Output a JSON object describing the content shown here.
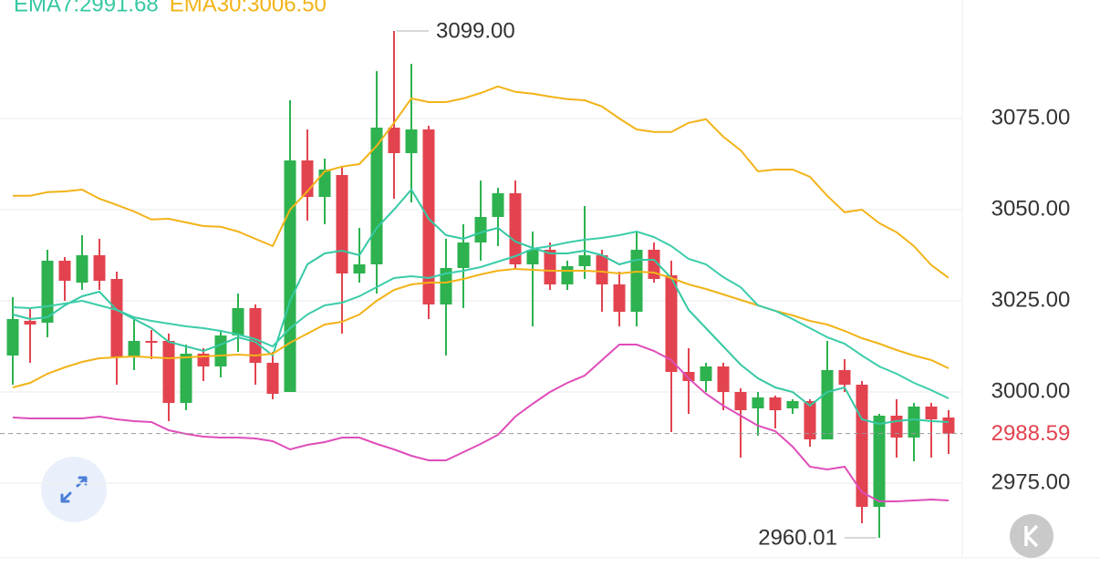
{
  "chart_data": {
    "type": "candlestick",
    "up_color": "#2db24f",
    "down_color": "#e2434f",
    "open": [
      3010,
      3019.5,
      3019,
      3036,
      3030,
      3037.5,
      3031,
      3009.5,
      3014,
      3014,
      2997,
      3010.5,
      3007,
      3015.5,
      3023,
      3008,
      3000,
      3063.5,
      3053.5,
      3059.5,
      3032.5,
      3035,
      3072.5,
      3065.5,
      3072,
      3024,
      3034,
      3041,
      3048,
      3054.5,
      3035,
      3039,
      3029.5,
      3034.5,
      3037.5,
      3029.5,
      3022,
      3039,
      3032,
      3005.5,
      3003,
      3007,
      3000,
      2995.5,
      2998.5,
      2995.5,
      2997.5,
      2987,
      3006,
      3002,
      2968.5,
      2993.5,
      2987.5,
      2996,
      2993
    ],
    "high": [
      3026,
      3023,
      3039,
      3037,
      3043,
      3042,
      3033,
      3020,
      3017,
      3016,
      3013,
      3012,
      3017,
      3027,
      3024,
      3011,
      3080,
      3072,
      3064,
      3062,
      3045,
      3088,
      3099,
      3090,
      3073,
      3042,
      3046,
      3058,
      3056,
      3058,
      3044,
      3041,
      3036,
      3051,
      3039,
      3033,
      3044,
      3041,
      3036,
      3012,
      3008,
      3008,
      3001,
      3000,
      2999,
      2998,
      2998,
      3014,
      3009,
      3003,
      2994,
      2998,
      2997,
      2997,
      2995
    ],
    "low": [
      3002,
      3008,
      3015,
      3025,
      3028,
      3028,
      3002,
      3006,
      3009,
      2992,
      2995,
      3003,
      3004,
      3011,
      3002,
      2998,
      3000,
      3047,
      3046,
      3016,
      3030,
      3027,
      3053,
      3052,
      3020,
      3010,
      3023,
      3036,
      3040,
      3034,
      3018,
      3028,
      3028,
      3031,
      3022,
      3018,
      3018,
      3030,
      2989,
      2994,
      3000,
      2995,
      2982,
      2988,
      2990,
      2994,
      2985,
      2987,
      3000,
      2964,
      2960.01,
      2982,
      2981,
      2982,
      2983
    ],
    "close": [
      3020,
      3018.5,
      3036,
      3030.5,
      3037.5,
      3030.5,
      3009.5,
      3014,
      3013.5,
      2997,
      3010.5,
      3007,
      3015.5,
      3023,
      3008,
      2999.5,
      3063.5,
      3053.5,
      3061,
      3032.5,
      3035,
      3072.5,
      3065.5,
      3072,
      3024,
      3034,
      3041,
      3048,
      3054.5,
      3035,
      3039,
      3029.5,
      3034.5,
      3037.5,
      3029.5,
      3022,
      3039,
      3031,
      3005.5,
      3003,
      3007,
      3000,
      2995,
      2998.5,
      2995,
      2997.5,
      2987,
      3006,
      3002,
      2968.5,
      2993.5,
      2987.5,
      2996,
      2992.5,
      2988.59
    ],
    "series": [
      {
        "name": "EMA7:2991.68",
        "color": "#35c8a3",
        "values": [
          3021.25,
          3020,
          3020.5,
          3023.75,
          3026.25,
          3027.5,
          3022.5,
          3020,
          3017.5,
          3013.75,
          3012.5,
          3011.25,
          3013,
          3015,
          3013.75,
          3010,
          3025,
          3035,
          3038,
          3038.75,
          3037.5,
          3045,
          3050,
          3055.5,
          3047.5,
          3043,
          3042,
          3043.75,
          3045,
          3041.25,
          3039.5,
          3038,
          3038,
          3038.75,
          3037.5,
          3035,
          3036.25,
          3036.25,
          3031.25,
          3022.5,
          3017.5,
          3012.5,
          3007.5,
          3003.75,
          3001.25,
          3000,
          2996.25,
          3000,
          3001.25,
          2992.5,
          2991.25,
          2992,
          2992.5,
          2992,
          2991.75
        ]
      },
      {
        "name": "EMA30:3006.50",
        "color": "#f2b318",
        "values": [
          3001.25,
          3002.5,
          3005,
          3006.75,
          3008.25,
          3009.25,
          3009.5,
          3009.75,
          3009.5,
          3009.25,
          3009.5,
          3009.75,
          3010,
          3010.25,
          3010,
          3010.5,
          3013.5,
          3016,
          3018.5,
          3019.25,
          3021.25,
          3025,
          3028,
          3029.5,
          3030,
          3030,
          3031,
          3032.25,
          3033.25,
          3033.75,
          3033.5,
          3033.25,
          3033.25,
          3033.25,
          3033,
          3032.5,
          3033,
          3032.75,
          3031.25,
          3029.5,
          3028.25,
          3026.75,
          3025.25,
          3023.75,
          3022.25,
          3021,
          3019.5,
          3018.5,
          3016.75,
          3014.75,
          3013.25,
          3011.5,
          3010,
          3008.75,
          3006.5
        ]
      },
      {
        "color": "#f2b318",
        "values": [
          3053.8,
          3053.8,
          3054.8,
          3055,
          3055.5,
          3053,
          3051.3,
          3049.5,
          3047.3,
          3047.5,
          3046.5,
          3045.5,
          3045.3,
          3044,
          3042,
          3040,
          3050,
          3055,
          3060.5,
          3061.8,
          3062.5,
          3067.5,
          3073.8,
          3080.5,
          3079.5,
          3079.5,
          3080.5,
          3082,
          3083.8,
          3082.3,
          3081.8,
          3081,
          3080.3,
          3080,
          3078.3,
          3075,
          3072,
          3071.3,
          3071.3,
          3073.8,
          3074.8,
          3070,
          3066.3,
          3060.5,
          3061,
          3061,
          3059,
          3053.8,
          3049.3,
          3050,
          3046.3,
          3043.8,
          3040,
          3034.8,
          3031.3
        ]
      },
      {
        "color": "#3ccdaa",
        "values": [
          3023.25,
          3023,
          3023.5,
          3024.25,
          3025,
          3023.75,
          3022.5,
          3020.5,
          3019.5,
          3018.75,
          3018,
          3017.5,
          3016.75,
          3015.75,
          3014.5,
          3012.5,
          3017.5,
          3021.25,
          3023.75,
          3024.5,
          3026.25,
          3028.75,
          3031.25,
          3031.75,
          3031.25,
          3032.5,
          3033.25,
          3034.25,
          3035.75,
          3037.25,
          3039.25,
          3040,
          3041,
          3041.75,
          3042.25,
          3043,
          3044,
          3042.5,
          3040,
          3036.5,
          3035,
          3031.5,
          3028.75,
          3023.75,
          3022.25,
          3020,
          3017.5,
          3015,
          3013.25,
          3010,
          3007,
          3005,
          3002.5,
          3000.5,
          2998.25
        ]
      },
      {
        "color": "#df4db9",
        "values": [
          2993,
          2992.75,
          2992.75,
          2992.75,
          2992.75,
          2993.25,
          2992.5,
          2992,
          2991.75,
          2989.5,
          2988.5,
          2987.75,
          2987.5,
          2987.5,
          2987.25,
          2986.5,
          2984.25,
          2985.5,
          2986.25,
          2987.5,
          2987.5,
          2985.75,
          2984.25,
          2982.5,
          2981.25,
          2981.25,
          2983.5,
          2985.75,
          2988.25,
          2993.25,
          2996.75,
          3000,
          3002.5,
          3004.5,
          3008.75,
          3013,
          3013,
          3011.25,
          3008.75,
          3003.75,
          2999.5,
          2996.25,
          2993.5,
          2990.75,
          2989.25,
          2985,
          2979.5,
          2978.75,
          2979.5,
          2972.5,
          2970,
          2970,
          2970.25,
          2970.5,
          2970.25
        ]
      }
    ],
    "high_label": "3099.00",
    "low_label": "2960.01",
    "last_price": 2988.59,
    "ylim": [
      2954.5,
      3107.5
    ],
    "yticks": [
      {
        "value": 3075,
        "label": "3075.00"
      },
      {
        "value": 3050,
        "label": "3050.00"
      },
      {
        "value": 3025,
        "label": "3025.00"
      },
      {
        "value": 3000,
        "label": "3000.00"
      },
      {
        "value": 2975,
        "label": "2975.00"
      }
    ],
    "grid": true
  }
}
